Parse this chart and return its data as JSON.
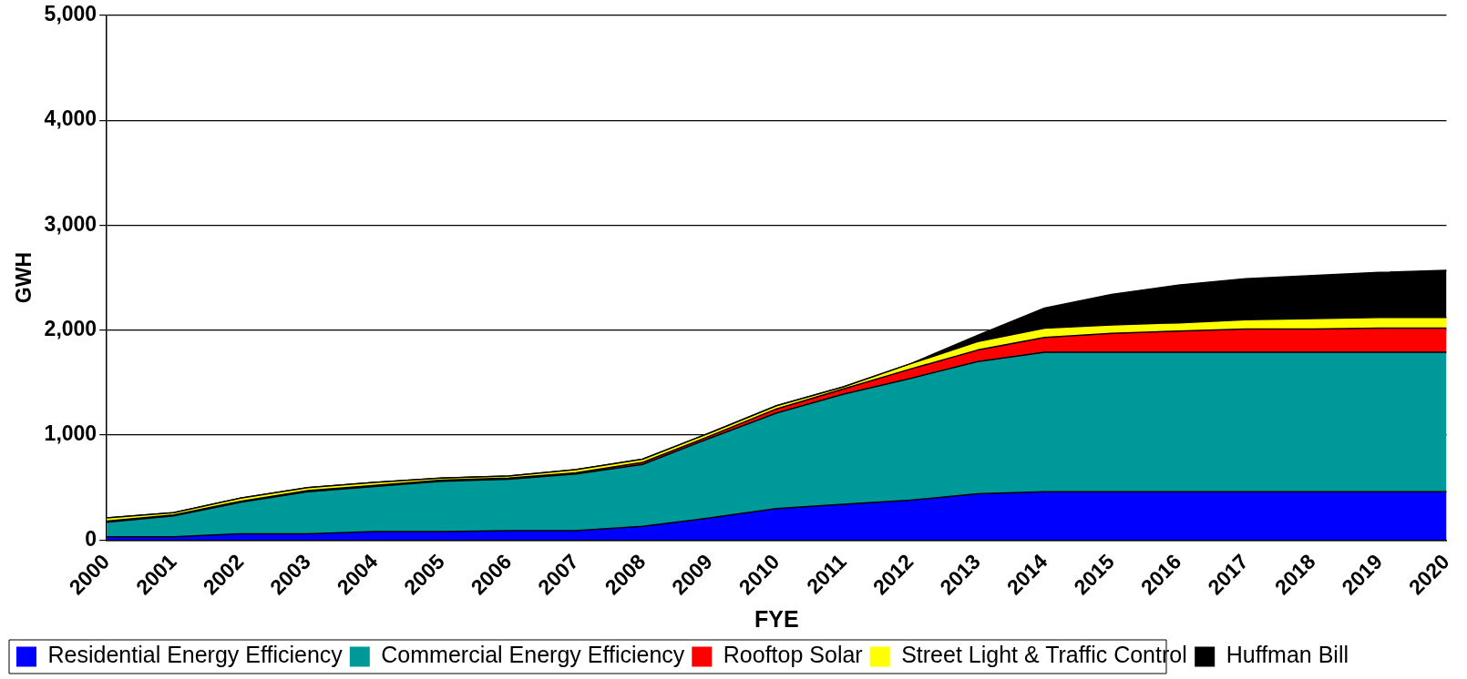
{
  "chart_data": {
    "type": "area",
    "stacked": true,
    "xlabel": "FYE",
    "ylabel": "GWH",
    "categories": [
      "2000",
      "2001",
      "2002",
      "2003",
      "2004",
      "2005",
      "2006",
      "2007",
      "2008",
      "2009",
      "2010",
      "2011",
      "2012",
      "2013",
      "2014",
      "2015",
      "2016",
      "2017",
      "2018",
      "2019",
      "2020"
    ],
    "ylim": [
      0,
      5000
    ],
    "yticks": [
      {
        "value": 0,
        "label": "0"
      },
      {
        "value": 1000,
        "label": "1,000"
      },
      {
        "value": 2000,
        "label": "2,000"
      },
      {
        "value": 3000,
        "label": "3,000"
      },
      {
        "value": 4000,
        "label": "4,000"
      },
      {
        "value": 5000,
        "label": "5,000"
      }
    ],
    "grid": "y",
    "legend": "bottom",
    "series": [
      {
        "name": "Residential Energy Efficiency",
        "color": "#0000ff",
        "values": [
          30,
          30,
          60,
          60,
          80,
          80,
          90,
          90,
          130,
          210,
          300,
          340,
          380,
          440,
          460,
          460,
          460,
          460,
          460,
          460,
          460
        ]
      },
      {
        "name": "Commercial Energy Efficiency",
        "color": "#009999",
        "values": [
          140,
          200,
          300,
          400,
          430,
          480,
          490,
          540,
          590,
          760,
          910,
          1050,
          1160,
          1260,
          1330,
          1330,
          1330,
          1330,
          1330,
          1330,
          1330
        ]
      },
      {
        "name": "Rooftop Solar",
        "color": "#ff0000",
        "values": [
          10,
          10,
          10,
          10,
          10,
          10,
          10,
          10,
          20,
          20,
          40,
          50,
          90,
          110,
          140,
          180,
          200,
          220,
          220,
          230,
          230
        ]
      },
      {
        "name": "Street Light & Traffic Control",
        "color": "#ffff00",
        "values": [
          30,
          20,
          30,
          30,
          30,
          20,
          20,
          30,
          30,
          30,
          30,
          20,
          50,
          80,
          90,
          80,
          80,
          90,
          100,
          100,
          100
        ]
      },
      {
        "name": "Huffman Bill",
        "color": "#000000",
        "values": [
          0,
          0,
          0,
          0,
          0,
          0,
          0,
          0,
          0,
          0,
          0,
          0,
          0,
          60,
          190,
          290,
          360,
          390,
          410,
          430,
          450
        ]
      }
    ]
  }
}
